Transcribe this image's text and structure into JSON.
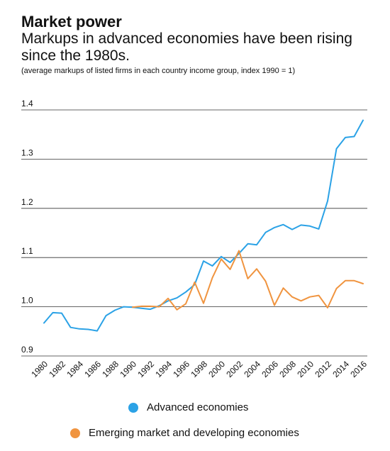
{
  "title": "Market power",
  "subtitle": "Markups in advanced economies have been rising since the 1980s.",
  "note": "(average markups of listed firms in each country income group, index 1990 = 1)",
  "colors": {
    "advanced": "#2ba2e6",
    "emerging": "#f0943f",
    "grid": "#333333",
    "text": "#111111"
  },
  "chart_data": {
    "type": "line",
    "title": "Market power",
    "subtitle": "Markups in advanced economies have been rising since the 1980s.",
    "note": "(average markups of listed firms in each country income group, index 1990 = 1)",
    "xlabel": "",
    "ylabel": "",
    "xlim": [
      1980,
      2016
    ],
    "ylim": [
      0.9,
      1.4
    ],
    "x_ticks": [
      "1980",
      "1982",
      "1984",
      "1986",
      "1988",
      "1990",
      "1992",
      "1994",
      "1996",
      "1998",
      "2000",
      "2002",
      "2004",
      "2006",
      "2008",
      "2010",
      "2012",
      "2014",
      "2016"
    ],
    "y_ticks": [
      "0.9",
      "1.0",
      "1.1",
      "1.2",
      "1.3",
      "1.4"
    ],
    "grid": "horizontal",
    "legend_position": "bottom",
    "series": [
      {
        "name": "Advanced economies",
        "color": "#2ba2e6",
        "x": [
          1980,
          1981,
          1982,
          1983,
          1984,
          1985,
          1986,
          1987,
          1988,
          1989,
          1990,
          1991,
          1992,
          1993,
          1994,
          1995,
          1996,
          1997,
          1998,
          1999,
          2000,
          2001,
          2002,
          2003,
          2004,
          2005,
          2006,
          2007,
          2008,
          2009,
          2010,
          2011,
          2012,
          2013,
          2014,
          2015,
          2016
        ],
        "y": [
          0.967,
          0.988,
          0.987,
          0.958,
          0.955,
          0.954,
          0.951,
          0.982,
          0.993,
          1.0,
          0.999,
          0.997,
          0.995,
          1.002,
          1.012,
          1.018,
          1.03,
          1.045,
          1.093,
          1.083,
          1.102,
          1.09,
          1.108,
          1.128,
          1.126,
          1.151,
          1.161,
          1.167,
          1.157,
          1.166,
          1.164,
          1.158,
          1.215,
          1.321,
          1.344,
          1.346,
          1.379
        ]
      },
      {
        "name": "Emerging market and developing economies",
        "color": "#f0943f",
        "x": [
          1990,
          1991,
          1992,
          1993,
          1994,
          1995,
          1996,
          1997,
          1998,
          1999,
          2000,
          2001,
          2002,
          2003,
          2004,
          2005,
          2006,
          2007,
          2008,
          2009,
          2010,
          2011,
          2012,
          2013,
          2014,
          2015,
          2016
        ],
        "y": [
          0.999,
          1.001,
          1.001,
          1.0,
          1.017,
          0.994,
          1.006,
          1.05,
          1.007,
          1.059,
          1.097,
          1.076,
          1.114,
          1.057,
          1.077,
          1.052,
          1.003,
          1.038,
          1.02,
          1.012,
          1.02,
          1.023,
          0.998,
          1.037,
          1.053,
          1.053,
          1.047
        ]
      }
    ]
  }
}
